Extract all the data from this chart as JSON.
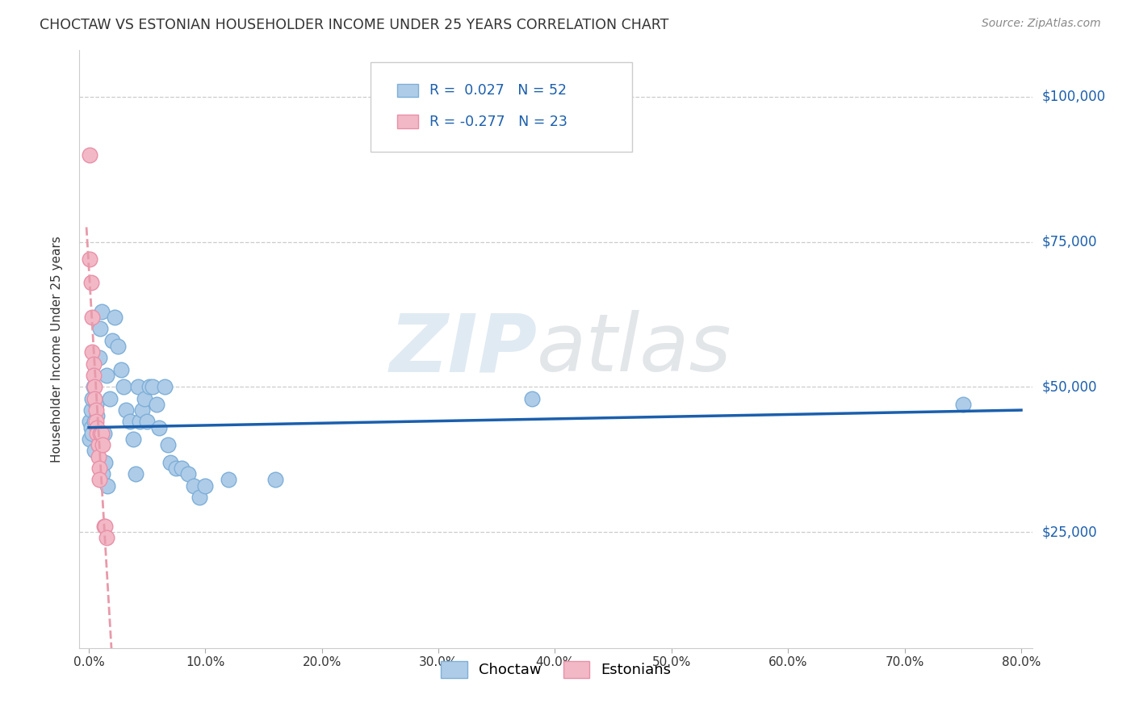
{
  "title": "CHOCTAW VS ESTONIAN HOUSEHOLDER INCOME UNDER 25 YEARS CORRELATION CHART",
  "source": "Source: ZipAtlas.com",
  "ylabel": "Householder Income Under 25 years",
  "ylabel_ticks": [
    "$25,000",
    "$50,000",
    "$75,000",
    "$100,000"
  ],
  "ylabel_tick_values": [
    25000,
    50000,
    75000,
    100000
  ],
  "choctaw_R": 0.027,
  "choctaw_N": 52,
  "estonian_R": -0.277,
  "estonian_N": 23,
  "choctaw_color": "#aecce8",
  "estonian_color": "#f2b8c6",
  "trendline_choctaw_color": "#1b5fad",
  "trendline_estonian_color": "#e89aaa",
  "background_color": "#ffffff",
  "choctaw_x": [
    0.001,
    0.001,
    0.002,
    0.002,
    0.003,
    0.003,
    0.004,
    0.005,
    0.005,
    0.006,
    0.007,
    0.008,
    0.009,
    0.01,
    0.011,
    0.012,
    0.013,
    0.014,
    0.015,
    0.016,
    0.018,
    0.02,
    0.022,
    0.025,
    0.028,
    0.03,
    0.032,
    0.035,
    0.038,
    0.04,
    0.042,
    0.044,
    0.046,
    0.048,
    0.05,
    0.052,
    0.055,
    0.058,
    0.06,
    0.065,
    0.068,
    0.07,
    0.075,
    0.08,
    0.085,
    0.09,
    0.095,
    0.1,
    0.12,
    0.16,
    0.38,
    0.75
  ],
  "choctaw_y": [
    44000,
    41000,
    46000,
    43000,
    48000,
    42000,
    50000,
    44000,
    39000,
    47000,
    45000,
    40000,
    55000,
    60000,
    63000,
    35000,
    42000,
    37000,
    52000,
    33000,
    48000,
    58000,
    62000,
    57000,
    53000,
    50000,
    46000,
    44000,
    41000,
    35000,
    50000,
    44000,
    46000,
    48000,
    44000,
    50000,
    50000,
    47000,
    43000,
    50000,
    40000,
    37000,
    36000,
    36000,
    35000,
    33000,
    31000,
    33000,
    34000,
    34000,
    48000,
    47000
  ],
  "estonian_x": [
    0.001,
    0.001,
    0.002,
    0.003,
    0.003,
    0.004,
    0.004,
    0.005,
    0.005,
    0.006,
    0.006,
    0.007,
    0.007,
    0.008,
    0.008,
    0.009,
    0.009,
    0.01,
    0.011,
    0.012,
    0.013,
    0.014,
    0.015
  ],
  "estonian_y": [
    90000,
    72000,
    68000,
    62000,
    56000,
    54000,
    52000,
    50000,
    48000,
    46000,
    44000,
    43000,
    42000,
    40000,
    38000,
    36000,
    34000,
    42000,
    42000,
    40000,
    26000,
    26000,
    24000
  ]
}
